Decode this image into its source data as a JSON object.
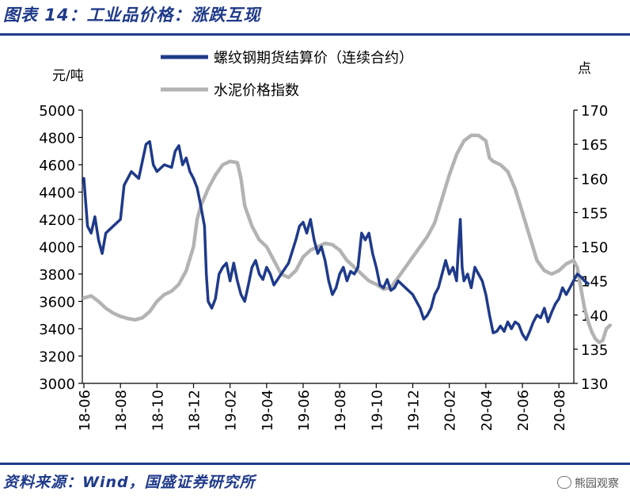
{
  "figure": {
    "title": "图表 14：工业品价格：涨跌互现",
    "source": "资料来源：Wind，国盛证券研究所",
    "watermark": "熊园观察"
  },
  "chart_data": {
    "type": "line",
    "left_unit": "元/吨",
    "right_unit": "点",
    "left_ylim": [
      3000,
      5000
    ],
    "right_ylim": [
      130,
      170
    ],
    "left_ticks": [
      "3000",
      "3200",
      "3400",
      "3600",
      "3800",
      "4000",
      "4200",
      "4400",
      "4600",
      "4800",
      "5000"
    ],
    "right_ticks": [
      "130",
      "135",
      "140",
      "145",
      "150",
      "155",
      "160",
      "165",
      "170"
    ],
    "x_ticks": [
      "18-06",
      "18-08",
      "18-10",
      "18-12",
      "19-02",
      "19-04",
      "19-06",
      "19-08",
      "19-10",
      "19-12",
      "20-02",
      "20-04",
      "20-06",
      "20-08"
    ],
    "grid": false,
    "legend_position": "top",
    "series": [
      {
        "name": "螺纹钢期货结算价（连续合约）",
        "axis": "left",
        "color": "#1f3a8a",
        "points": [
          [
            0.0,
            4500
          ],
          [
            0.1,
            4150
          ],
          [
            0.2,
            4100
          ],
          [
            0.3,
            4220
          ],
          [
            0.4,
            4050
          ],
          [
            0.5,
            3950
          ],
          [
            0.6,
            4100
          ],
          [
            0.8,
            4150
          ],
          [
            1.0,
            4200
          ],
          [
            1.1,
            4450
          ],
          [
            1.3,
            4550
          ],
          [
            1.5,
            4500
          ],
          [
            1.7,
            4750
          ],
          [
            1.8,
            4770
          ],
          [
            1.9,
            4600
          ],
          [
            2.0,
            4550
          ],
          [
            2.2,
            4600
          ],
          [
            2.4,
            4580
          ],
          [
            2.5,
            4700
          ],
          [
            2.6,
            4740
          ],
          [
            2.7,
            4600
          ],
          [
            2.8,
            4650
          ],
          [
            2.9,
            4550
          ],
          [
            3.0,
            4500
          ],
          [
            3.1,
            4430
          ],
          [
            3.2,
            4300
          ],
          [
            3.3,
            4150
          ],
          [
            3.35,
            3800
          ],
          [
            3.4,
            3600
          ],
          [
            3.5,
            3550
          ],
          [
            3.6,
            3620
          ],
          [
            3.7,
            3800
          ],
          [
            3.8,
            3850
          ],
          [
            3.9,
            3880
          ],
          [
            4.0,
            3750
          ],
          [
            4.1,
            3880
          ],
          [
            4.2,
            3750
          ],
          [
            4.3,
            3650
          ],
          [
            4.4,
            3600
          ],
          [
            4.5,
            3720
          ],
          [
            4.6,
            3850
          ],
          [
            4.7,
            3900
          ],
          [
            4.8,
            3800
          ],
          [
            4.9,
            3760
          ],
          [
            5.0,
            3850
          ],
          [
            5.1,
            3800
          ],
          [
            5.2,
            3720
          ],
          [
            5.4,
            3800
          ],
          [
            5.6,
            3880
          ],
          [
            5.8,
            4050
          ],
          [
            5.9,
            4150
          ],
          [
            6.0,
            4180
          ],
          [
            6.1,
            4100
          ],
          [
            6.2,
            4200
          ],
          [
            6.3,
            4050
          ],
          [
            6.4,
            3950
          ],
          [
            6.5,
            4000
          ],
          [
            6.6,
            3900
          ],
          [
            6.7,
            3750
          ],
          [
            6.8,
            3650
          ],
          [
            6.9,
            3700
          ],
          [
            7.0,
            3800
          ],
          [
            7.1,
            3850
          ],
          [
            7.2,
            3750
          ],
          [
            7.3,
            3820
          ],
          [
            7.4,
            3800
          ],
          [
            7.5,
            3850
          ],
          [
            7.6,
            4100
          ],
          [
            7.7,
            4050
          ],
          [
            7.8,
            4100
          ],
          [
            7.9,
            3950
          ],
          [
            8.0,
            3850
          ],
          [
            8.1,
            3720
          ],
          [
            8.2,
            3700
          ],
          [
            8.3,
            3760
          ],
          [
            8.4,
            3680
          ],
          [
            8.5,
            3700
          ],
          [
            8.6,
            3750
          ],
          [
            8.8,
            3700
          ],
          [
            9.0,
            3650
          ],
          [
            9.2,
            3550
          ],
          [
            9.3,
            3470
          ],
          [
            9.4,
            3500
          ],
          [
            9.5,
            3550
          ],
          [
            9.6,
            3650
          ],
          [
            9.7,
            3700
          ],
          [
            9.8,
            3800
          ],
          [
            9.9,
            3900
          ],
          [
            10.0,
            3800
          ],
          [
            10.1,
            3850
          ],
          [
            10.2,
            3750
          ],
          [
            10.25,
            4000
          ],
          [
            10.3,
            4200
          ],
          [
            10.35,
            3850
          ],
          [
            10.4,
            3750
          ],
          [
            10.5,
            3800
          ],
          [
            10.6,
            3700
          ],
          [
            10.7,
            3850
          ],
          [
            10.8,
            3800
          ],
          [
            10.9,
            3750
          ],
          [
            11.0,
            3650
          ],
          [
            11.1,
            3500
          ],
          [
            11.2,
            3370
          ],
          [
            11.3,
            3380
          ],
          [
            11.4,
            3420
          ],
          [
            11.5,
            3380
          ],
          [
            11.6,
            3450
          ],
          [
            11.7,
            3400
          ],
          [
            11.8,
            3450
          ],
          [
            11.9,
            3430
          ],
          [
            12.0,
            3360
          ],
          [
            12.1,
            3320
          ],
          [
            12.2,
            3380
          ],
          [
            12.3,
            3450
          ],
          [
            12.4,
            3500
          ],
          [
            12.5,
            3480
          ],
          [
            12.6,
            3550
          ],
          [
            12.7,
            3450
          ],
          [
            12.8,
            3520
          ],
          [
            12.9,
            3580
          ],
          [
            13.0,
            3620
          ],
          [
            13.1,
            3700
          ],
          [
            13.2,
            3650
          ],
          [
            13.3,
            3700
          ],
          [
            13.4,
            3750
          ],
          [
            13.5,
            3800
          ],
          [
            13.6,
            3780
          ],
          [
            13.7,
            3750
          ],
          [
            13.8,
            3730
          ]
        ]
      },
      {
        "name": "水泥价格指数",
        "axis": "right",
        "color": "#b3b3b3",
        "points": [
          [
            0.0,
            142.5
          ],
          [
            0.2,
            142.8
          ],
          [
            0.4,
            142.0
          ],
          [
            0.6,
            141.0
          ],
          [
            0.8,
            140.3
          ],
          [
            1.0,
            139.8
          ],
          [
            1.2,
            139.5
          ],
          [
            1.4,
            139.3
          ],
          [
            1.6,
            139.6
          ],
          [
            1.8,
            140.5
          ],
          [
            2.0,
            142.0
          ],
          [
            2.2,
            143.0
          ],
          [
            2.4,
            143.5
          ],
          [
            2.6,
            144.5
          ],
          [
            2.8,
            146.5
          ],
          [
            3.0,
            150.0
          ],
          [
            3.1,
            154.0
          ],
          [
            3.2,
            156.0
          ],
          [
            3.4,
            158.5
          ],
          [
            3.6,
            160.5
          ],
          [
            3.8,
            162.0
          ],
          [
            4.0,
            162.5
          ],
          [
            4.2,
            162.3
          ],
          [
            4.3,
            160.0
          ],
          [
            4.4,
            156.0
          ],
          [
            4.6,
            153.0
          ],
          [
            4.8,
            151.0
          ],
          [
            5.0,
            150.0
          ],
          [
            5.2,
            148.0
          ],
          [
            5.4,
            146.0
          ],
          [
            5.6,
            145.5
          ],
          [
            5.8,
            146.5
          ],
          [
            6.0,
            148.5
          ],
          [
            6.2,
            149.5
          ],
          [
            6.4,
            150.0
          ],
          [
            6.6,
            150.5
          ],
          [
            6.8,
            150.3
          ],
          [
            7.0,
            149.5
          ],
          [
            7.2,
            148.0
          ],
          [
            7.4,
            147.0
          ],
          [
            7.6,
            146.0
          ],
          [
            7.8,
            145.0
          ],
          [
            8.0,
            144.5
          ],
          [
            8.2,
            143.8
          ],
          [
            8.4,
            144.0
          ],
          [
            8.6,
            145.5
          ],
          [
            8.8,
            147.0
          ],
          [
            9.0,
            148.5
          ],
          [
            9.2,
            150.0
          ],
          [
            9.4,
            151.5
          ],
          [
            9.6,
            153.5
          ],
          [
            9.8,
            157.0
          ],
          [
            10.0,
            160.5
          ],
          [
            10.2,
            163.5
          ],
          [
            10.4,
            165.5
          ],
          [
            10.6,
            166.3
          ],
          [
            10.8,
            166.3
          ],
          [
            11.0,
            165.5
          ],
          [
            11.1,
            163.0
          ],
          [
            11.2,
            162.5
          ],
          [
            11.4,
            162.0
          ],
          [
            11.6,
            161.0
          ],
          [
            11.8,
            158.5
          ],
          [
            12.0,
            155.0
          ],
          [
            12.2,
            151.5
          ],
          [
            12.4,
            148.0
          ],
          [
            12.6,
            146.5
          ],
          [
            12.8,
            146.0
          ],
          [
            13.0,
            146.5
          ],
          [
            13.2,
            147.5
          ],
          [
            13.4,
            148.0
          ],
          [
            13.5,
            147.0
          ],
          [
            13.6,
            144.0
          ],
          [
            13.7,
            141.0
          ],
          [
            13.8,
            139.0
          ],
          [
            13.9,
            137.5
          ],
          [
            14.0,
            136.5
          ],
          [
            14.1,
            136.0
          ],
          [
            14.2,
            136.3
          ],
          [
            14.3,
            138.0
          ],
          [
            14.4,
            138.5
          ]
        ]
      }
    ]
  }
}
